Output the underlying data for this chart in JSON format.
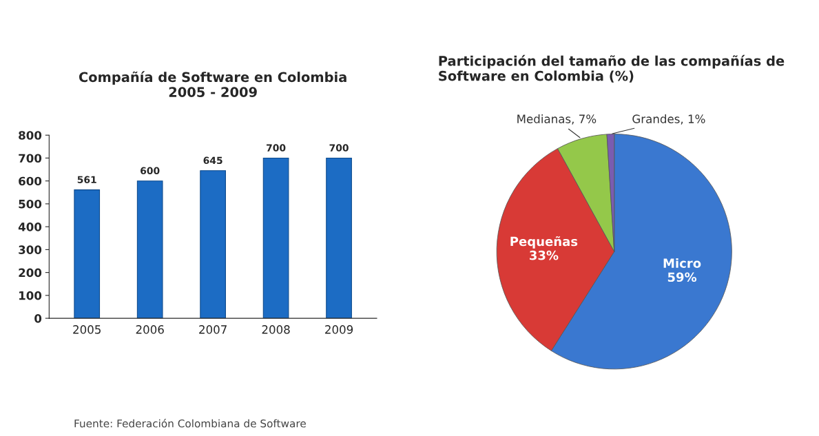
{
  "chart_data": [
    {
      "type": "bar",
      "title": "Compañía de Software en Colombia\n2005 - 2009",
      "categories": [
        "2005",
        "2006",
        "2007",
        "2008",
        "2009"
      ],
      "values": [
        561,
        600,
        645,
        700,
        700
      ],
      "color": "#1c6cc4",
      "ylim": [
        0,
        800
      ],
      "yticks": [
        0,
        100,
        200,
        300,
        400,
        500,
        600,
        700,
        800
      ],
      "data_labels": true,
      "grid": false,
      "annotations": [
        "Fuente: Federación Colombiana de Software"
      ]
    },
    {
      "type": "pie",
      "title": "Participación del tamaño de las compañías de\nSoftware en Colombia (%)",
      "categories": [
        "Micro",
        "Pequeñas",
        "Medianas",
        "Grandes"
      ],
      "values": [
        59,
        33,
        7,
        1
      ],
      "colors": [
        "#3a78d0",
        "#d83a36",
        "#94c84a",
        "#7a5cb0"
      ],
      "value_labels": [
        "59%",
        "33%",
        "7%",
        "1%"
      ]
    }
  ]
}
